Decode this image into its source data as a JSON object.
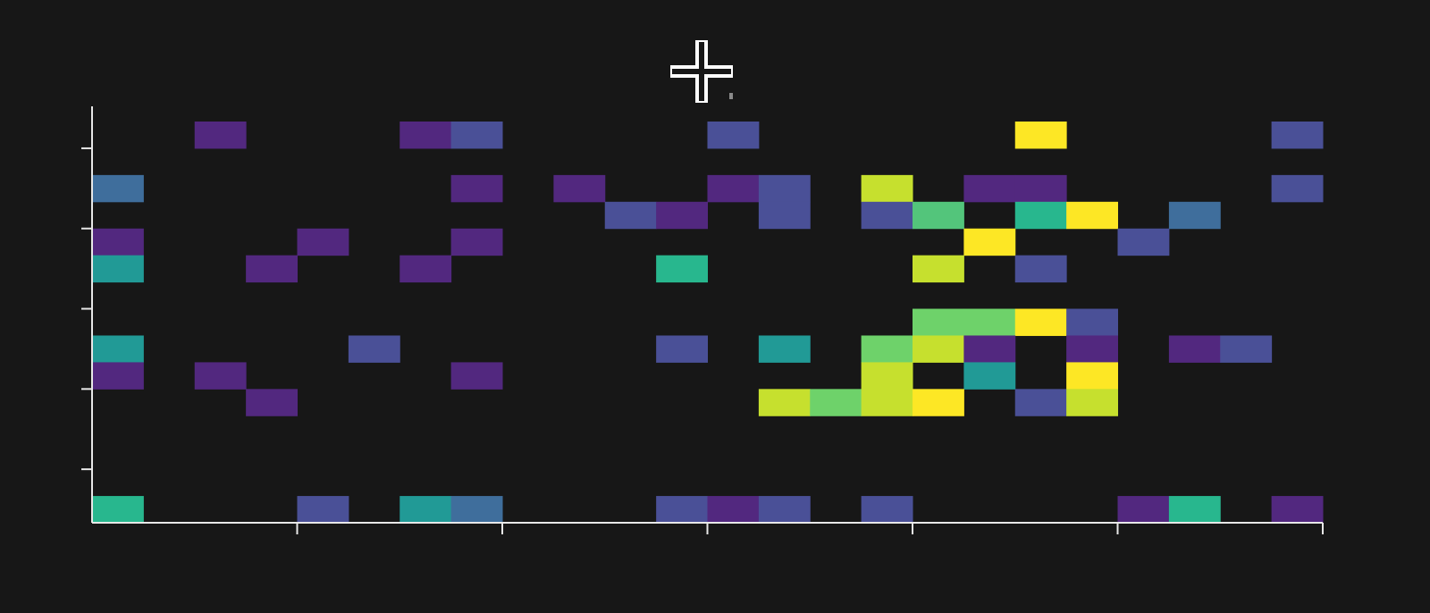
{
  "chart_data": {
    "type": "heatmap",
    "title": "",
    "xlabel": "",
    "ylabel": "",
    "n_cols": 24,
    "n_rows": 15,
    "grid": false,
    "legend": "none",
    "x_tick_positions": [
      4,
      8,
      12,
      16,
      20,
      24
    ],
    "y_tick_positions": [
      1,
      4,
      7,
      10,
      13
    ],
    "colors": {
      "background": "#171717",
      "axis": "#e8e8e8",
      "palette": [
        "#52287f",
        "#4a5097",
        "#3f6e9c",
        "#219a96",
        "#28b78e",
        "#53c57b",
        "#6ed26a",
        "#c6e02e",
        "#fde725"
      ]
    },
    "cells": [
      {
        "col": 2,
        "row": 0,
        "level": 0
      },
      {
        "col": 6,
        "row": 0,
        "level": 0
      },
      {
        "col": 7,
        "row": 0,
        "level": 1
      },
      {
        "col": 12,
        "row": 0,
        "level": 1
      },
      {
        "col": 18,
        "row": 0,
        "level": 8
      },
      {
        "col": 23,
        "row": 0,
        "level": 1
      },
      {
        "col": 0,
        "row": 2,
        "level": 2
      },
      {
        "col": 7,
        "row": 2,
        "level": 0
      },
      {
        "col": 9,
        "row": 2,
        "level": 0
      },
      {
        "col": 12,
        "row": 2,
        "level": 0
      },
      {
        "col": 13,
        "row": 2,
        "level": 1
      },
      {
        "col": 15,
        "row": 2,
        "level": 7
      },
      {
        "col": 17,
        "row": 2,
        "level": 0
      },
      {
        "col": 18,
        "row": 2,
        "level": 0
      },
      {
        "col": 23,
        "row": 2,
        "level": 1
      },
      {
        "col": 10,
        "row": 3,
        "level": 1
      },
      {
        "col": 11,
        "row": 3,
        "level": 0
      },
      {
        "col": 13,
        "row": 3,
        "level": 1
      },
      {
        "col": 15,
        "row": 3,
        "level": 1
      },
      {
        "col": 16,
        "row": 3,
        "level": 5
      },
      {
        "col": 18,
        "row": 3,
        "level": 4
      },
      {
        "col": 19,
        "row": 3,
        "level": 8
      },
      {
        "col": 21,
        "row": 3,
        "level": 2
      },
      {
        "col": 0,
        "row": 4,
        "level": 0
      },
      {
        "col": 4,
        "row": 4,
        "level": 0
      },
      {
        "col": 7,
        "row": 4,
        "level": 0
      },
      {
        "col": 17,
        "row": 4,
        "level": 8
      },
      {
        "col": 20,
        "row": 4,
        "level": 1
      },
      {
        "col": 0,
        "row": 5,
        "level": 3
      },
      {
        "col": 3,
        "row": 5,
        "level": 0
      },
      {
        "col": 6,
        "row": 5,
        "level": 0
      },
      {
        "col": 11,
        "row": 5,
        "level": 4
      },
      {
        "col": 16,
        "row": 5,
        "level": 7
      },
      {
        "col": 18,
        "row": 5,
        "level": 1
      },
      {
        "col": 16,
        "row": 7,
        "level": 6
      },
      {
        "col": 17,
        "row": 7,
        "level": 6
      },
      {
        "col": 18,
        "row": 7,
        "level": 8
      },
      {
        "col": 19,
        "row": 7,
        "level": 1
      },
      {
        "col": 0,
        "row": 8,
        "level": 3
      },
      {
        "col": 5,
        "row": 8,
        "level": 1
      },
      {
        "col": 11,
        "row": 8,
        "level": 1
      },
      {
        "col": 13,
        "row": 8,
        "level": 3
      },
      {
        "col": 15,
        "row": 8,
        "level": 6
      },
      {
        "col": 16,
        "row": 8,
        "level": 7
      },
      {
        "col": 17,
        "row": 8,
        "level": 0
      },
      {
        "col": 19,
        "row": 8,
        "level": 0
      },
      {
        "col": 21,
        "row": 8,
        "level": 0
      },
      {
        "col": 22,
        "row": 8,
        "level": 1
      },
      {
        "col": 0,
        "row": 9,
        "level": 0
      },
      {
        "col": 2,
        "row": 9,
        "level": 0
      },
      {
        "col": 7,
        "row": 9,
        "level": 0
      },
      {
        "col": 15,
        "row": 9,
        "level": 7
      },
      {
        "col": 17,
        "row": 9,
        "level": 3
      },
      {
        "col": 19,
        "row": 9,
        "level": 8
      },
      {
        "col": 3,
        "row": 10,
        "level": 0
      },
      {
        "col": 13,
        "row": 10,
        "level": 7
      },
      {
        "col": 14,
        "row": 10,
        "level": 6
      },
      {
        "col": 15,
        "row": 10,
        "level": 7
      },
      {
        "col": 16,
        "row": 10,
        "level": 8
      },
      {
        "col": 18,
        "row": 10,
        "level": 1
      },
      {
        "col": 19,
        "row": 10,
        "level": 7
      },
      {
        "col": 0,
        "row": 14,
        "level": 4
      },
      {
        "col": 4,
        "row": 14,
        "level": 1
      },
      {
        "col": 6,
        "row": 14,
        "level": 3
      },
      {
        "col": 7,
        "row": 14,
        "level": 2
      },
      {
        "col": 11,
        "row": 14,
        "level": 1
      },
      {
        "col": 12,
        "row": 14,
        "level": 0
      },
      {
        "col": 13,
        "row": 14,
        "level": 1
      },
      {
        "col": 15,
        "row": 14,
        "level": 1
      },
      {
        "col": 20,
        "row": 14,
        "level": 0
      },
      {
        "col": 21,
        "row": 14,
        "level": 4
      },
      {
        "col": 23,
        "row": 14,
        "level": 0
      }
    ]
  },
  "overlay": {
    "cursor_icon": "crosshair-cursor-icon"
  }
}
